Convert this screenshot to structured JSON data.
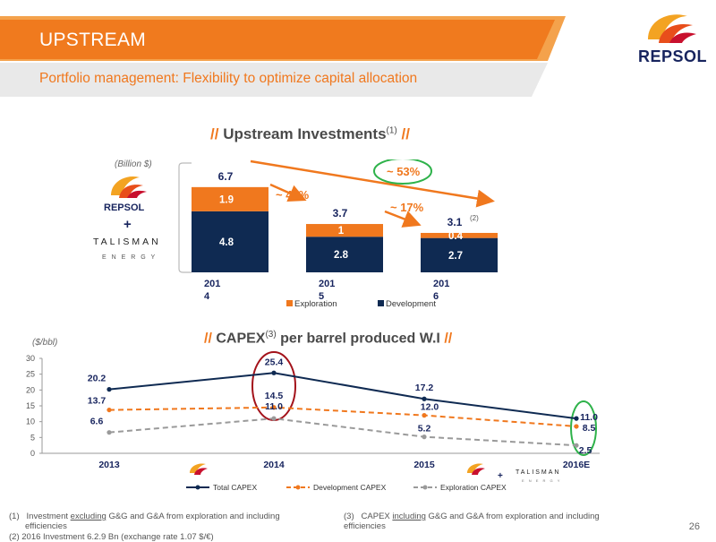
{
  "header": {
    "title": "UPSTREAM",
    "subtitle": "Portfolio management: Flexibility to optimize capital allocation",
    "logo_text": "REPSOL",
    "colors": {
      "orange": "#f0781e",
      "navy": "#0f2a52",
      "gray_bar": "#e9e9e9"
    }
  },
  "investments": {
    "title": "Upstream Investments",
    "title_sup": "(1)",
    "slashes_left": "//",
    "slashes_right": "//",
    "unit": "(Billion $)",
    "left_logos": {
      "repsol": "REPSOL",
      "plus": "+",
      "talisman": "TALISMAN",
      "talisman_sub": "E N E R G Y"
    },
    "changes": {
      "a": "~ 44%",
      "b": "~ 17%",
      "overall": "~ 53%"
    },
    "total_2016_note": "(2)"
  },
  "capex": {
    "title_pre": "CAPEX",
    "title_sup": "(3)",
    "title_post": "per barrel produced W.I",
    "slashes_left": "//",
    "slashes_right": "//",
    "unit": "($/bbl)",
    "talisman_small": "TALISMAN",
    "talisman_small_sub": "E N E R G Y",
    "plus": "+"
  },
  "chart_data": [
    {
      "type": "bar",
      "stacked": true,
      "categories": [
        "2014",
        "2015",
        "2016"
      ],
      "category_labels": [
        [
          "201",
          "4"
        ],
        [
          "201",
          "5"
        ],
        [
          "201",
          "6"
        ]
      ],
      "series": [
        {
          "name": "Development",
          "values": [
            4.8,
            2.8,
            2.7
          ],
          "color": "#0f2a52"
        },
        {
          "name": "Exploration",
          "values": [
            1.9,
            1.0,
            0.4
          ],
          "color": "#f0781e"
        }
      ],
      "totals": [
        6.7,
        3.7,
        3.1
      ],
      "legend": [
        "Exploration",
        "Development"
      ]
    },
    {
      "type": "line",
      "x": [
        "2013",
        "2014",
        "2015",
        "2016"
      ],
      "x_labels": [
        "2013",
        "2014",
        "2015",
        "2016E"
      ],
      "ylim": [
        0,
        30
      ],
      "y_ticks": [
        0,
        5,
        10,
        15,
        20,
        25,
        30
      ],
      "series": [
        {
          "name": "Total CAPEX",
          "values": [
            20.2,
            25.4,
            17.2,
            11.0
          ],
          "color": "#0f2a52",
          "style": "solid"
        },
        {
          "name": "Development CAPEX",
          "values": [
            13.7,
            14.5,
            12.0,
            8.5
          ],
          "color": "#f0781e",
          "style": "dashed"
        },
        {
          "name": "Exploration CAPEX",
          "values": [
            6.6,
            11.0,
            5.2,
            2.5
          ],
          "color": "#9a9a9a",
          "style": "dashed"
        }
      ],
      "highlight": [
        "2014",
        "2016"
      ]
    }
  ],
  "footnotes": {
    "f1_num": "(1)",
    "f1_pre": "Investment",
    "f1_u": "excluding",
    "f1_post": "G&G and G&A from exploration and including",
    "f1_line2": "efficiencies",
    "f2": "(2)    2016 Investment 6.2.9 Bn (exchange rate 1.07 $/€)",
    "f3_num": "(3)",
    "f3_pre": "CAPEX",
    "f3_u": "including",
    "f3_post": "G&G and G&A from exploration and including",
    "f3_line2": "efficiencies"
  },
  "page_number": "26"
}
